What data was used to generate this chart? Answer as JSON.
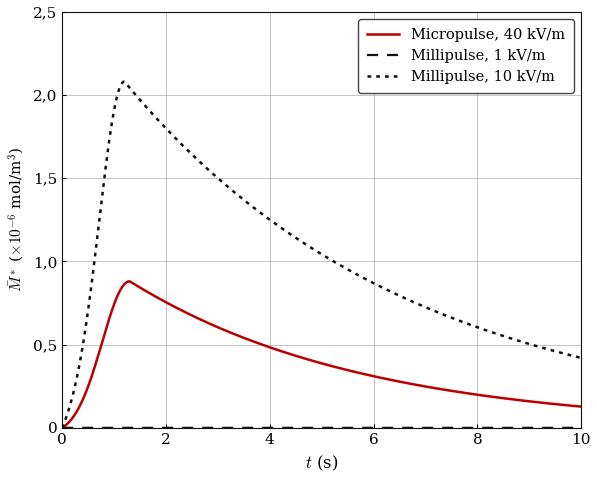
{
  "xlabel": "$t$ (s)",
  "ylabel": "$\\bar{M}^*$ ($\\times 10^{-6}$ mol/m$^3$)",
  "xlim": [
    0,
    10
  ],
  "ylim": [
    0,
    2.5
  ],
  "xticks": [
    0,
    2,
    4,
    6,
    8,
    10
  ],
  "yticks": [
    0,
    0.5,
    1.0,
    1.5,
    2.0,
    2.5
  ],
  "ytick_labels": [
    "0",
    "0,5",
    "1,0",
    "1,5",
    "2,0",
    "2,5"
  ],
  "legend": [
    {
      "label": "Micropulse, 40 kV/m",
      "color": "#bb0000",
      "linestyle": "solid",
      "linewidth": 1.8
    },
    {
      "label": "Millipulse, 1 kV/m",
      "color": "#111111",
      "linestyle": "dashed",
      "linewidth": 1.6
    },
    {
      "label": "Millipulse, 10 kV/m",
      "color": "#111111",
      "linestyle": "dotted",
      "linewidth": 1.8
    }
  ],
  "curve_micropulse_40": {
    "peak_t": 1.3,
    "peak_v": 0.88,
    "decay_tau": 4.5,
    "rise_k": 5.0
  },
  "curve_milli_1": {
    "flat_value": 0.0,
    "is_flat": true
  },
  "curve_milli_10": {
    "peak_t": 1.2,
    "peak_v": 2.08,
    "decay_tau": 5.5,
    "rise_k": 8.0
  },
  "grid_color": "#bbbbbb",
  "background_color": "#ffffff",
  "figsize": [
    5.97,
    4.79
  ],
  "dpi": 100
}
